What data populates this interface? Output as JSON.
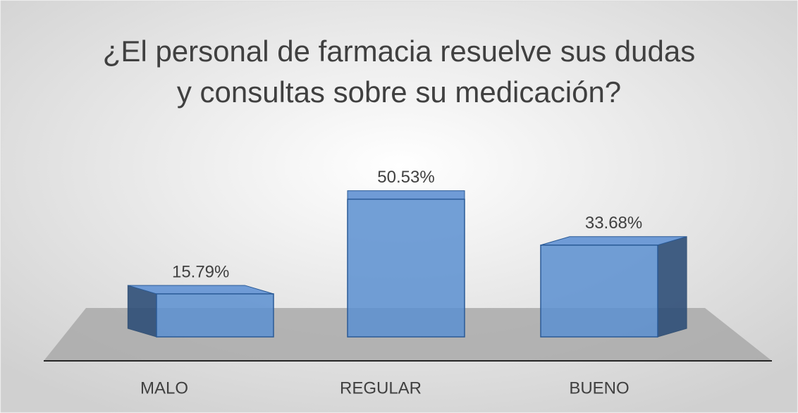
{
  "chart_data": {
    "type": "bar3d",
    "title": [
      "¿El personal de farmacia resuelve sus dudas",
      "y consultas sobre su medicación?"
    ],
    "categories": [
      "MALO",
      "REGULAR",
      "BUENO"
    ],
    "values": [
      15.79,
      50.53,
      33.68
    ],
    "value_labels": [
      "15.79%",
      "50.53%",
      "33.68%"
    ],
    "color": "#5b8fd0",
    "ylim": [
      0,
      60
    ]
  }
}
